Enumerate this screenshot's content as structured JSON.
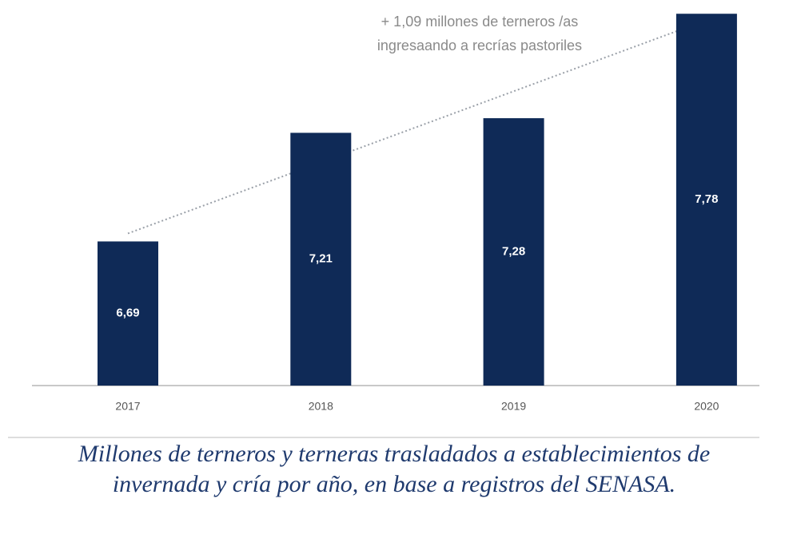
{
  "chart_data": {
    "type": "bar",
    "categories": [
      "2017",
      "2018",
      "2019",
      "2020"
    ],
    "values": [
      6.69,
      7.21,
      7.28,
      7.78
    ],
    "value_labels": [
      "6,69",
      "7,21",
      "7,28",
      "7,78"
    ],
    "color": "#0f2a57",
    "ylim": [
      6,
      7.8
    ],
    "annotation": [
      "+ 1,09 millones de terneros /as",
      "ingresaando a recrías pastoriles"
    ],
    "caption": "Millones de terneros y terneras trasladados a establecimientos de invernada y cría por año, en base a registros del SENASA."
  }
}
